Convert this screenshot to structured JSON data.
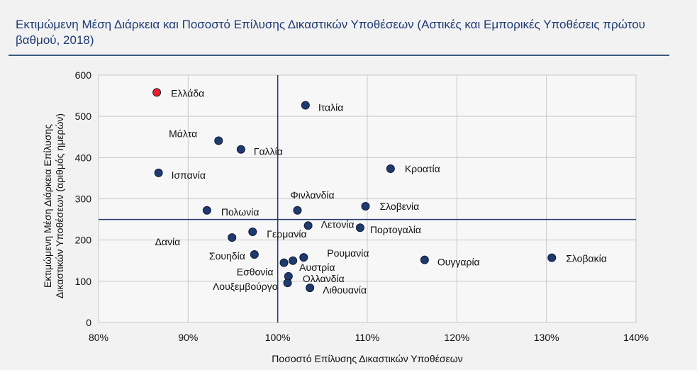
{
  "chart_data": {
    "type": "scatter",
    "title": "Εκτιμώμενη Μέση Διάρκεια και Ποσοστό Επίλυσης Δικαστικών Υποθέσεων (Αστικές και Εμπορικές Υποθέσεις πρώτου βαθμού, 2018)",
    "xlabel": "Ποσοστό Επίλυσης Δικαστικών Υποθέσεων",
    "ylabel": "Εκτιμώμενη Μέση Διάρκεια Επίλυσης Δικαστικών Υποθέσεων (αριθμός ημερών)",
    "xlim": [
      80,
      140
    ],
    "ylim": [
      0,
      600
    ],
    "x_ticks": [
      "80%",
      "90%",
      "100%",
      "110%",
      "120%",
      "130%",
      "140%"
    ],
    "y_ticks": [
      "0",
      "100",
      "200",
      "300",
      "400",
      "500",
      "600"
    ],
    "grid": true,
    "reference_lines": {
      "x": 100,
      "y": 250
    },
    "colors": {
      "point": "#1f3a6e",
      "highlight": "#e8222a",
      "grid": "#c8c8c8",
      "refline": "#1f3a6e"
    },
    "points": [
      {
        "name": "Ελλάδα",
        "x": 86.5,
        "y": 558,
        "highlight": true
      },
      {
        "name": "Ιταλία",
        "x": 103.1,
        "y": 527
      },
      {
        "name": "Μάλτα",
        "x": 93.4,
        "y": 441
      },
      {
        "name": "Γαλλία",
        "x": 95.9,
        "y": 420
      },
      {
        "name": "Ισπανία",
        "x": 86.7,
        "y": 363
      },
      {
        "name": "Κροατία",
        "x": 112.6,
        "y": 373
      },
      {
        "name": "Φινλανδία",
        "x": 102.2,
        "y": 272
      },
      {
        "name": "Πολωνία",
        "x": 92.1,
        "y": 272
      },
      {
        "name": "Σλοβενία",
        "x": 109.8,
        "y": 282
      },
      {
        "name": "Λετονία",
        "x": 103.4,
        "y": 235
      },
      {
        "name": "Πορτογαλία",
        "x": 109.2,
        "y": 230
      },
      {
        "name": "Γερμανία",
        "x": 97.2,
        "y": 220
      },
      {
        "name": "Δανία",
        "x": 94.9,
        "y": 206
      },
      {
        "name": "Σουηδία",
        "x": 97.4,
        "y": 165
      },
      {
        "name": "Ρουμανία",
        "x": 102.9,
        "y": 158
      },
      {
        "name": "Ουγγαρία",
        "x": 116.4,
        "y": 152
      },
      {
        "name": "Σλοβακία",
        "x": 130.6,
        "y": 157
      },
      {
        "name": "Εσθονία",
        "x": 100.7,
        "y": 145
      },
      {
        "name": "Αυστρία",
        "x": 101.7,
        "y": 150
      },
      {
        "name": "Ολλανδία",
        "x": 101.2,
        "y": 112
      },
      {
        "name": "Λουξεμβούργο",
        "x": 101.1,
        "y": 96
      },
      {
        "name": "Λιθουανία",
        "x": 103.6,
        "y": 84
      }
    ]
  }
}
